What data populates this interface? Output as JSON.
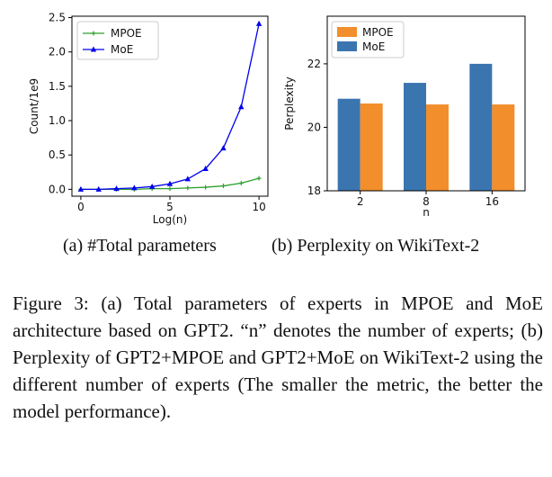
{
  "subcaptions": {
    "a": "(a)  #Total parameters",
    "b": "(b)  Perplexity on WikiText-2"
  },
  "caption": "Figure 3: (a) Total parameters of experts in MPOE and MoE architecture based on GPT2. “n” denotes the number of experts; (b) Perplexity of GPT2+MPOE and GPT2+MoE on WikiText-2 using the different number of experts (The smaller the metric, the better the model performance).",
  "chart_data": [
    {
      "type": "line",
      "title": "",
      "xlabel": "Log(n)",
      "ylabel": "Count/1e9",
      "xlim": [
        -0.5,
        10.5
      ],
      "ylim": [
        -0.1,
        2.52
      ],
      "xticks": [
        0,
        5,
        10
      ],
      "yticks": [
        0.0,
        0.5,
        1.0,
        1.5,
        2.0,
        2.5
      ],
      "ytick_labels": [
        "0.0",
        "0.5",
        "1.0",
        "1.5",
        "2.0",
        "2.5"
      ],
      "legend_position": "top-left",
      "grid": false,
      "x": [
        0,
        1,
        2,
        3,
        4,
        5,
        6,
        7,
        8,
        9,
        10
      ],
      "series": [
        {
          "name": "MPOE",
          "color": "#2ca02c",
          "marker": "plus",
          "values": [
            0.0,
            0.0,
            0.0,
            0.0,
            0.01,
            0.01,
            0.02,
            0.03,
            0.05,
            0.09,
            0.16
          ]
        },
        {
          "name": "MoE",
          "color": "#0000ee",
          "marker": "triangle",
          "values": [
            0.0,
            0.0,
            0.01,
            0.02,
            0.04,
            0.08,
            0.15,
            0.3,
            0.6,
            1.2,
            2.41
          ]
        }
      ]
    },
    {
      "type": "bar",
      "title": "",
      "xlabel": "n",
      "ylabel": "Perplexity",
      "categories": [
        "2",
        "8",
        "16"
      ],
      "ylim": [
        18,
        23.5
      ],
      "yticks": [
        18,
        20,
        22
      ],
      "legend_position": "top-left",
      "grid": false,
      "series": [
        {
          "name": "MPOE",
          "color": "#f28e2b",
          "values": [
            20.75,
            20.72,
            20.72
          ]
        },
        {
          "name": "MoE",
          "color": "#3a75b0",
          "values": [
            20.9,
            21.4,
            22.0
          ]
        }
      ]
    }
  ]
}
